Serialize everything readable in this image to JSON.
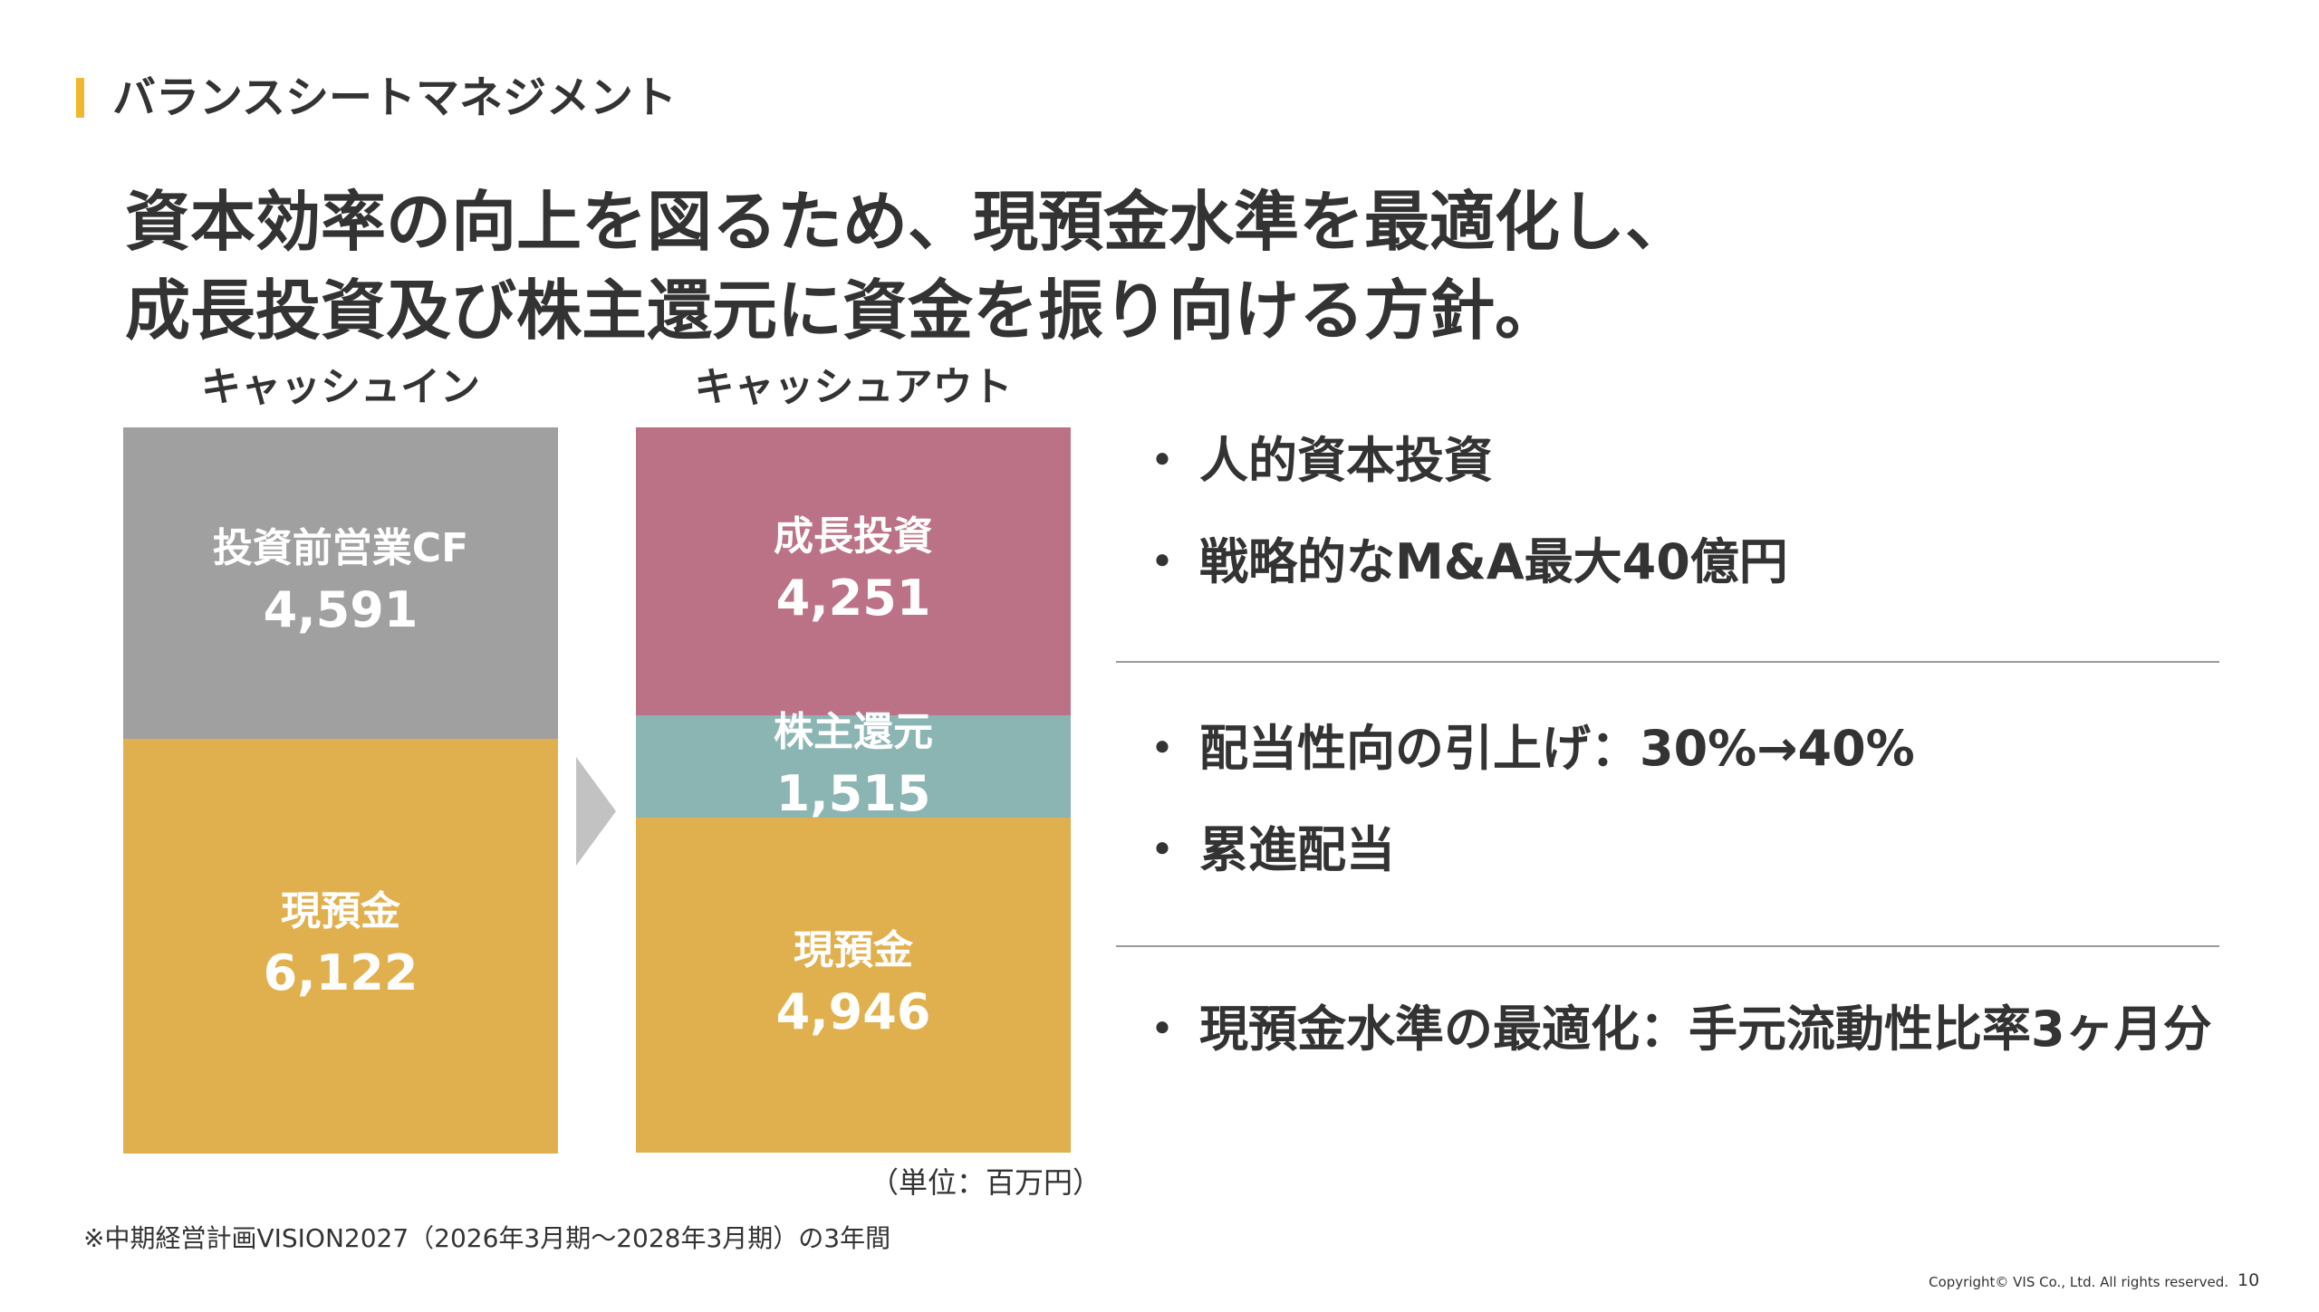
{
  "section": {
    "title": "バランスシートマネジメント",
    "accent_color": "#f0b82d"
  },
  "headline": {
    "line1": "資本効率の向上を図るため、現預金水準を最適化し、",
    "line2": "成長投資及び株主還元に資金を振り向ける方針。"
  },
  "chart_data": {
    "type": "bar",
    "stacked": true,
    "unit_note": "（単位：百万円）",
    "categories": [
      "キャッシュイン",
      "キャッシュアウト"
    ],
    "series": [
      {
        "name": "キャッシュイン",
        "blocks": [
          {
            "label": "投資前営業CF",
            "value": 4591,
            "value_label": "4,591",
            "color": "#a0a0a0"
          },
          {
            "label": "現預金",
            "value": 6122,
            "value_label": "6,122",
            "color": "#e0b04e"
          }
        ]
      },
      {
        "name": "キャッシュアウト",
        "blocks": [
          {
            "label": "成長投資",
            "value": 4251,
            "value_label": "4,251",
            "color": "#bc7286"
          },
          {
            "label": "株主還元",
            "value": 1515,
            "value_label": "1,515",
            "color": "#8bb5b3"
          },
          {
            "label": "現預金",
            "value": 4946,
            "value_label": "4,946",
            "color": "#e0b04e"
          }
        ]
      }
    ],
    "arrow_color": "#c2c2c2"
  },
  "bullets": {
    "group1": [
      "人的資本投資",
      "戦略的なM&A最大40億円"
    ],
    "group2": [
      "配当性向の引上げ：30%→40%",
      "累進配当"
    ],
    "group3": [
      "現預金水準の最適化：手元流動性比率3ヶ月分"
    ],
    "dot": "・"
  },
  "footnote": "※中期経営計画VISION2027（2026年3月期～2028年3月期）の3年間",
  "copyright": "Copyright© VIS Co., Ltd. All rights reserved.",
  "page_number": "10"
}
